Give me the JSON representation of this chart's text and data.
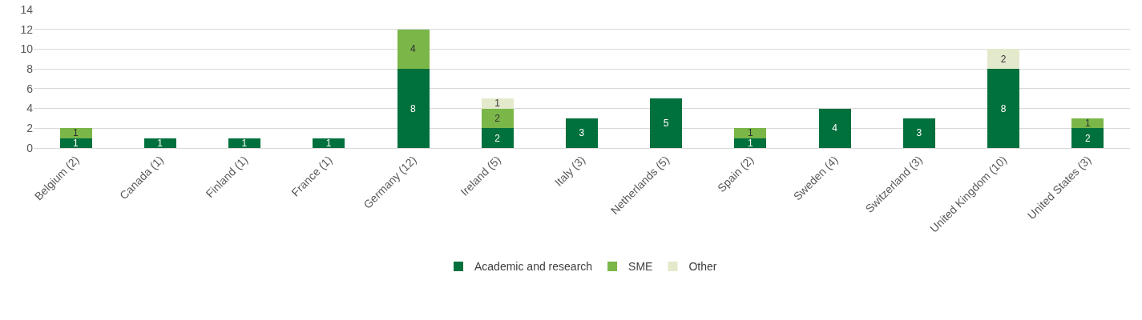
{
  "chart_data": {
    "type": "bar",
    "stacked": true,
    "categories": [
      "Belgium (2)",
      "Canada (1)",
      "Finland (1)",
      "France (1)",
      "Germany (12)",
      "Ireland (5)",
      "Italy (3)",
      "Netherlands (5)",
      "Spain (2)",
      "Sweden (4)",
      "Switzerland (3)",
      "United Kingdom (10)",
      "United States (3)"
    ],
    "series": [
      {
        "name": "Academic and research",
        "color": "#00703c",
        "values": [
          1,
          1,
          1,
          1,
          8,
          2,
          3,
          5,
          1,
          4,
          3,
          8,
          2
        ]
      },
      {
        "name": "SME",
        "color": "#7ab648",
        "values": [
          1,
          null,
          null,
          null,
          4,
          2,
          null,
          null,
          1,
          null,
          null,
          null,
          1
        ]
      },
      {
        "name": "Other",
        "color": "#e3e9cb",
        "values": [
          null,
          null,
          null,
          null,
          null,
          1,
          null,
          null,
          null,
          null,
          null,
          2,
          null
        ]
      }
    ],
    "ylim": [
      0,
      14
    ],
    "yticks": [
      0,
      2,
      4,
      6,
      8,
      10,
      12,
      14
    ],
    "grid": "y",
    "legend": "bottom",
    "data_labels": true
  }
}
